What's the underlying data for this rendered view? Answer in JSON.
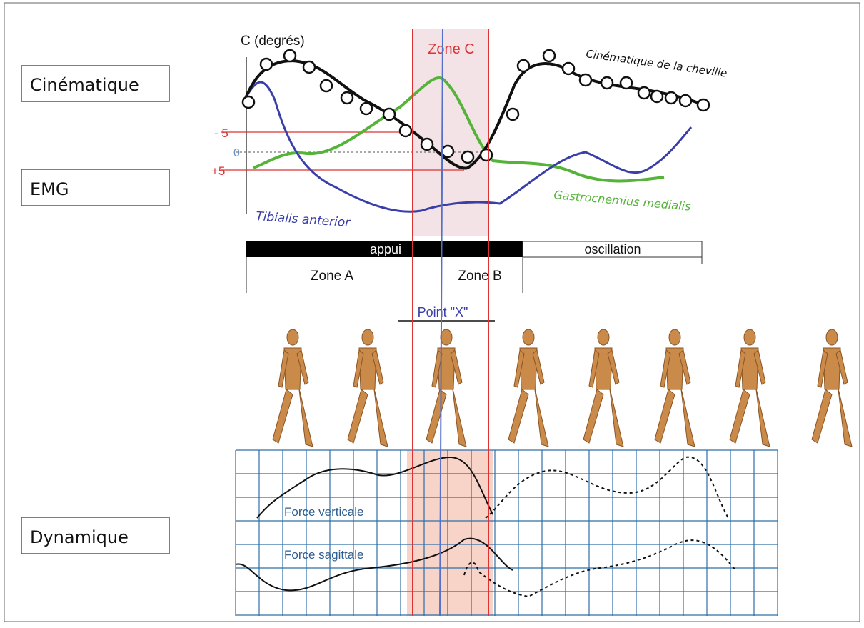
{
  "labels": {
    "kinematics": "Cinématique",
    "emg": "EMG",
    "dynamics": "Dynamique"
  },
  "chart": {
    "y_axis_label": "C (degrés)",
    "zone_c": "Zone C",
    "ticks": [
      "- 5",
      "0",
      "+5"
    ],
    "curve_labels": [
      "Cinématique de la cheville",
      "Tibialis anterior",
      "Gastrocnemius medialis"
    ]
  },
  "phases": {
    "stance": "appui",
    "swing": "oscillation",
    "zone_a": "Zone A",
    "zone_b": "Zone B",
    "point_x": "Point \"X\""
  },
  "forces": {
    "vertical": "Force verticale",
    "sagittal": "Force sagittale"
  }
}
